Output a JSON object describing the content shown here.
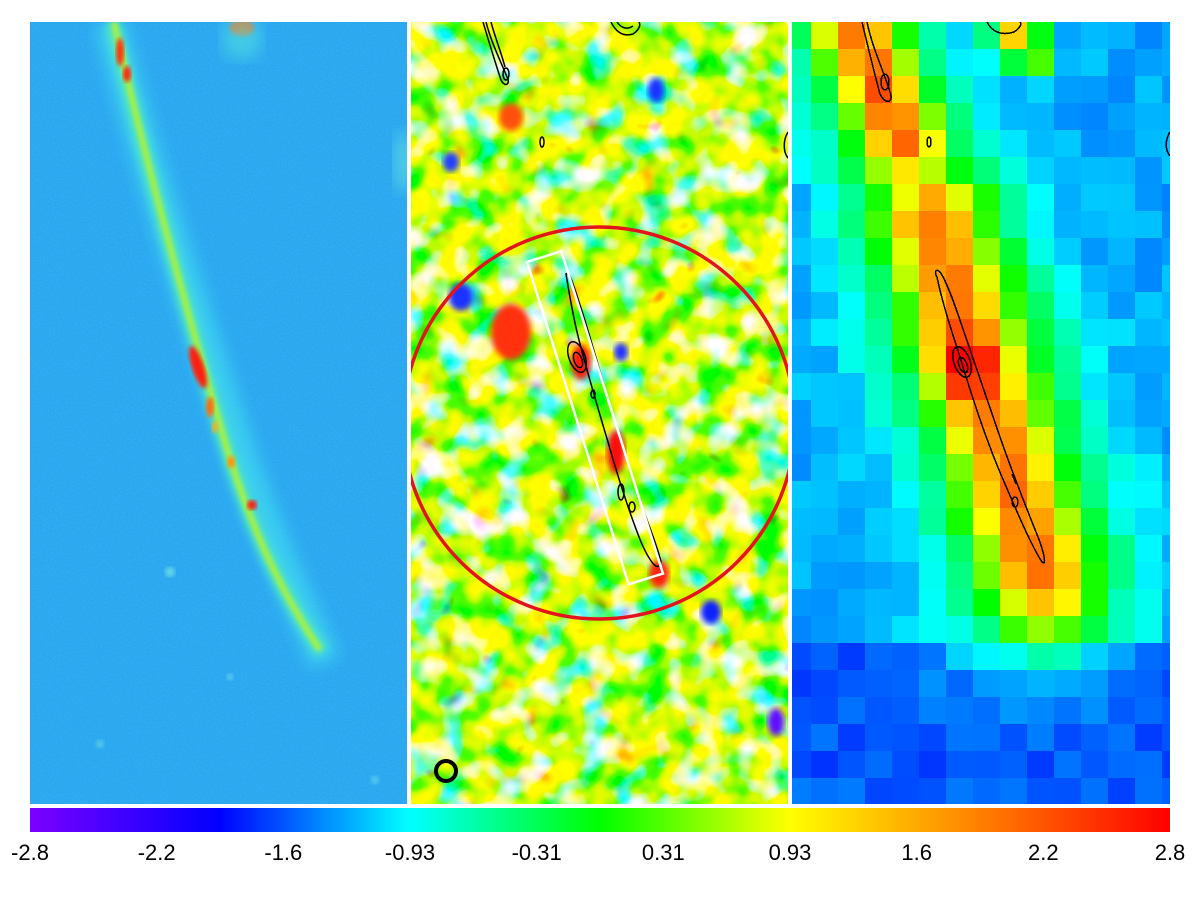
{
  "figure": {
    "panels": [
      {
        "id": "left",
        "description_name": "optical-image-panel"
      },
      {
        "id": "middle",
        "description_name": "smoothed-map-panel"
      },
      {
        "id": "right",
        "description_name": "low-resolution-map-panel"
      }
    ],
    "colorbar": {
      "tick_labels": [
        "-2.8",
        "-2.2",
        "-1.6",
        "-0.93",
        "-0.31",
        "0.31",
        "0.93",
        "1.6",
        "2.2",
        "2.8"
      ],
      "min": -2.8,
      "max": 2.8,
      "colormap": [
        "#7a00ff",
        "#0000ff",
        "#00ffff",
        "#00ff00",
        "#ffff00",
        "#ff7f00",
        "#ff0000"
      ]
    },
    "overlay_colors": {
      "circle": "#e3141c",
      "box": "#ffffff",
      "contour": "#000000",
      "beam_marker": "#000000"
    }
  }
}
